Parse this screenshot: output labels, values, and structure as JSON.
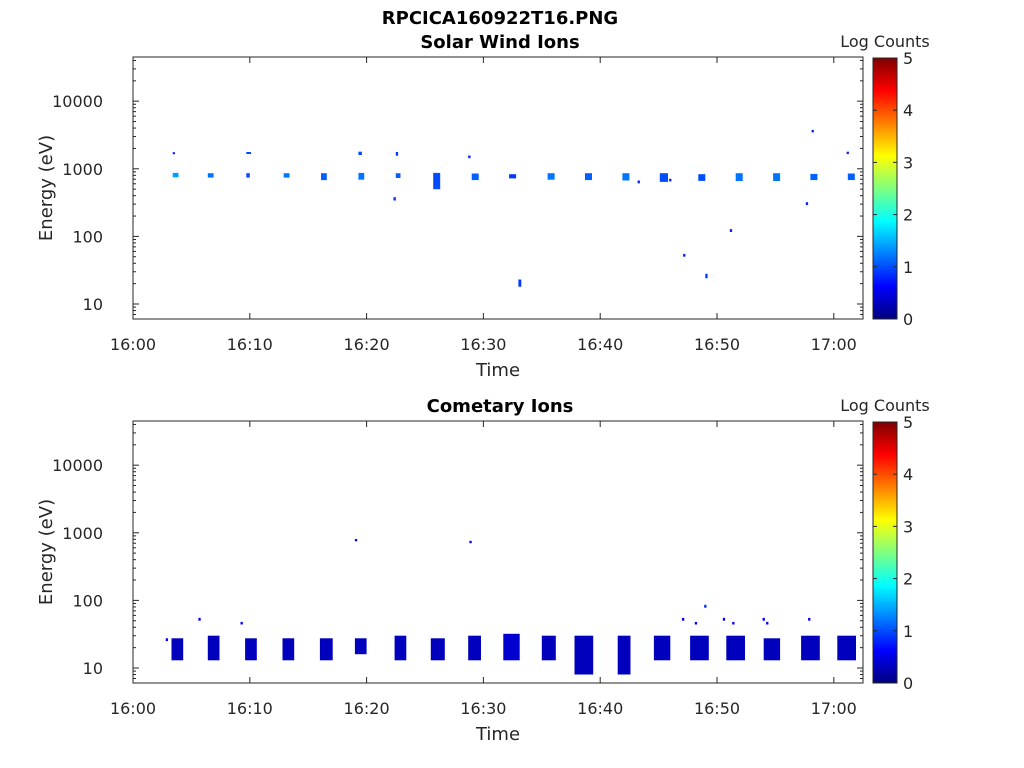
{
  "figure_title": "RPCICA160922T16.PNG",
  "colorbar": {
    "label": "Log Counts",
    "ticks": [
      "0",
      "1",
      "2",
      "3",
      "4",
      "5"
    ],
    "range": [
      0,
      5
    ],
    "colormap": "jet"
  },
  "chart_data": [
    {
      "type": "heatmap",
      "title": "Solar Wind Ions",
      "xlabel": "Time",
      "ylabel": "Energy (eV)",
      "xlim": [
        "16:00",
        "17:02.5"
      ],
      "ylim": [
        6,
        45000
      ],
      "yscale": "log",
      "x_ticks": [
        "16:00",
        "16:10",
        "16:20",
        "16:30",
        "16:40",
        "16:50",
        "17:00"
      ],
      "y_ticks": [
        "10",
        "100",
        "1000",
        "10000"
      ],
      "cells": [
        {
          "t": 3.4,
          "dt": 0.5,
          "e": 800,
          "lo": 750,
          "hi": 870,
          "v": 1.4
        },
        {
          "t": 3.4,
          "dt": 0.2,
          "e": 1700,
          "lo": 1650,
          "hi": 1760,
          "v": 0.8
        },
        {
          "t": 6.4,
          "dt": 0.5,
          "e": 790,
          "lo": 740,
          "hi": 860,
          "v": 1.2
        },
        {
          "t": 9.7,
          "dt": 0.3,
          "e": 800,
          "lo": 740,
          "hi": 860,
          "v": 1.0
        },
        {
          "t": 9.7,
          "dt": 0.4,
          "e": 1720,
          "lo": 1680,
          "hi": 1770,
          "v": 1.0
        },
        {
          "t": 12.9,
          "dt": 0.5,
          "e": 790,
          "lo": 740,
          "hi": 860,
          "v": 1.2
        },
        {
          "t": 16.1,
          "dt": 0.5,
          "e": 760,
          "lo": 680,
          "hi": 860,
          "v": 1.1
        },
        {
          "t": 19.3,
          "dt": 0.5,
          "e": 780,
          "lo": 690,
          "hi": 870,
          "v": 1.2
        },
        {
          "t": 19.3,
          "dt": 0.3,
          "e": 1720,
          "lo": 1600,
          "hi": 1790,
          "v": 1.0
        },
        {
          "t": 22.5,
          "dt": 0.4,
          "e": 790,
          "lo": 730,
          "hi": 860,
          "v": 1.1
        },
        {
          "t": 22.5,
          "dt": 0.2,
          "e": 1680,
          "lo": 1560,
          "hi": 1770,
          "v": 0.9
        },
        {
          "t": 22.3,
          "dt": 0.2,
          "e": 360,
          "lo": 340,
          "hi": 380,
          "v": 0.8
        },
        {
          "t": 25.7,
          "dt": 0.6,
          "e": 700,
          "lo": 500,
          "hi": 870,
          "v": 1.0
        },
        {
          "t": 28.7,
          "dt": 0.2,
          "e": 1500,
          "lo": 1430,
          "hi": 1570,
          "v": 0.8
        },
        {
          "t": 29.0,
          "dt": 0.6,
          "e": 760,
          "lo": 680,
          "hi": 850,
          "v": 1.1
        },
        {
          "t": 32.2,
          "dt": 0.6,
          "e": 770,
          "lo": 720,
          "hi": 830,
          "v": 0.9
        },
        {
          "t": 33.0,
          "dt": 0.25,
          "e": 20,
          "lo": 18,
          "hi": 23,
          "v": 0.9
        },
        {
          "t": 35.5,
          "dt": 0.6,
          "e": 770,
          "lo": 690,
          "hi": 860,
          "v": 1.2
        },
        {
          "t": 38.7,
          "dt": 0.6,
          "e": 770,
          "lo": 680,
          "hi": 860,
          "v": 1.1
        },
        {
          "t": 41.9,
          "dt": 0.6,
          "e": 770,
          "lo": 670,
          "hi": 860,
          "v": 1.2
        },
        {
          "t": 43.2,
          "dt": 0.2,
          "e": 640,
          "lo": 610,
          "hi": 670,
          "v": 0.8
        },
        {
          "t": 45.1,
          "dt": 0.7,
          "e": 740,
          "lo": 640,
          "hi": 860,
          "v": 1.0
        },
        {
          "t": 45.9,
          "dt": 0.2,
          "e": 680,
          "lo": 650,
          "hi": 710,
          "v": 0.8
        },
        {
          "t": 47.1,
          "dt": 0.2,
          "e": 52,
          "lo": 50,
          "hi": 55,
          "v": 0.8
        },
        {
          "t": 48.4,
          "dt": 0.6,
          "e": 730,
          "lo": 660,
          "hi": 830,
          "v": 1.0
        },
        {
          "t": 49.0,
          "dt": 0.2,
          "e": 26,
          "lo": 24,
          "hi": 28,
          "v": 0.9
        },
        {
          "t": 51.1,
          "dt": 0.2,
          "e": 122,
          "lo": 116,
          "hi": 128,
          "v": 0.8
        },
        {
          "t": 51.6,
          "dt": 0.6,
          "e": 760,
          "lo": 660,
          "hi": 860,
          "v": 1.2
        },
        {
          "t": 54.8,
          "dt": 0.6,
          "e": 760,
          "lo": 660,
          "hi": 860,
          "v": 1.2
        },
        {
          "t": 57.6,
          "dt": 0.2,
          "e": 305,
          "lo": 290,
          "hi": 320,
          "v": 0.8
        },
        {
          "t": 58.0,
          "dt": 0.6,
          "e": 760,
          "lo": 680,
          "hi": 840,
          "v": 1.1
        },
        {
          "t": 58.1,
          "dt": 0.2,
          "e": 3600,
          "lo": 3450,
          "hi": 3760,
          "v": 0.8
        },
        {
          "t": 61.1,
          "dt": 0.2,
          "e": 1720,
          "lo": 1650,
          "hi": 1790,
          "v": 0.8
        },
        {
          "t": 61.2,
          "dt": 0.6,
          "e": 770,
          "lo": 680,
          "hi": 850,
          "v": 1.1
        }
      ]
    },
    {
      "type": "heatmap",
      "title": "Cometary Ions",
      "xlabel": "Time",
      "ylabel": "Energy (eV)",
      "xlim": [
        "16:00",
        "17:02.5"
      ],
      "ylim": [
        6,
        45000
      ],
      "yscale": "log",
      "x_ticks": [
        "16:00",
        "16:10",
        "16:20",
        "16:30",
        "16:40",
        "16:50",
        "17:00"
      ],
      "y_ticks": [
        "10",
        "100",
        "1000",
        "10000"
      ],
      "cells": [
        {
          "t": 2.8,
          "dt": 0.2,
          "e": 26,
          "lo": 25,
          "hi": 27.5,
          "v": 0.6
        },
        {
          "t": 3.3,
          "dt": 1.0,
          "e": 21,
          "lo": 13,
          "hi": 27.5,
          "v": 0.3
        },
        {
          "t": 5.6,
          "dt": 0.2,
          "e": 52,
          "lo": 50,
          "hi": 55,
          "v": 0.6
        },
        {
          "t": 6.4,
          "dt": 1.0,
          "e": 20,
          "lo": 13,
          "hi": 30,
          "v": 0.3
        },
        {
          "t": 9.2,
          "dt": 0.2,
          "e": 46,
          "lo": 44,
          "hi": 48,
          "v": 0.6
        },
        {
          "t": 9.6,
          "dt": 1.0,
          "e": 20,
          "lo": 13,
          "hi": 27.5,
          "v": 0.3
        },
        {
          "t": 12.8,
          "dt": 1.0,
          "e": 20,
          "lo": 13,
          "hi": 27.5,
          "v": 0.3
        },
        {
          "t": 16.0,
          "dt": 1.1,
          "e": 20,
          "lo": 13,
          "hi": 27.5,
          "v": 0.3
        },
        {
          "t": 19.0,
          "dt": 0.2,
          "e": 780,
          "lo": 750,
          "hi": 810,
          "v": 0.6
        },
        {
          "t": 19.0,
          "dt": 1.0,
          "e": 22,
          "lo": 16,
          "hi": 27.5,
          "v": 0.3
        },
        {
          "t": 22.4,
          "dt": 1.0,
          "e": 20,
          "lo": 13,
          "hi": 30,
          "v": 0.3
        },
        {
          "t": 25.5,
          "dt": 1.2,
          "e": 20,
          "lo": 13,
          "hi": 27.5,
          "v": 0.3
        },
        {
          "t": 28.8,
          "dt": 0.2,
          "e": 730,
          "lo": 700,
          "hi": 760,
          "v": 0.6
        },
        {
          "t": 28.7,
          "dt": 1.1,
          "e": 21,
          "lo": 13,
          "hi": 30,
          "v": 0.3
        },
        {
          "t": 31.7,
          "dt": 1.4,
          "e": 20,
          "lo": 13,
          "hi": 32,
          "v": 0.4
        },
        {
          "t": 35.0,
          "dt": 1.2,
          "e": 20,
          "lo": 13,
          "hi": 30,
          "v": 0.3
        },
        {
          "t": 37.8,
          "dt": 1.6,
          "e": 18,
          "lo": 8,
          "hi": 30,
          "v": 0.3
        },
        {
          "t": 41.5,
          "dt": 1.1,
          "e": 18,
          "lo": 8,
          "hi": 30,
          "v": 0.3
        },
        {
          "t": 44.6,
          "dt": 1.4,
          "e": 20,
          "lo": 13,
          "hi": 30,
          "v": 0.3
        },
        {
          "t": 47.0,
          "dt": 0.2,
          "e": 52,
          "lo": 50,
          "hi": 55,
          "v": 0.6
        },
        {
          "t": 48.1,
          "dt": 0.2,
          "e": 46,
          "lo": 44,
          "hi": 48,
          "v": 0.6
        },
        {
          "t": 48.9,
          "dt": 0.2,
          "e": 82,
          "lo": 78,
          "hi": 86,
          "v": 0.8
        },
        {
          "t": 47.7,
          "dt": 1.6,
          "e": 20,
          "lo": 13,
          "hi": 30,
          "v": 0.3
        },
        {
          "t": 50.5,
          "dt": 0.2,
          "e": 52,
          "lo": 50,
          "hi": 55,
          "v": 0.6
        },
        {
          "t": 51.3,
          "dt": 0.2,
          "e": 46,
          "lo": 44,
          "hi": 48,
          "v": 0.6
        },
        {
          "t": 50.8,
          "dt": 1.6,
          "e": 20,
          "lo": 13,
          "hi": 30,
          "v": 0.3
        },
        {
          "t": 53.9,
          "dt": 0.2,
          "e": 52,
          "lo": 50,
          "hi": 55,
          "v": 0.6
        },
        {
          "t": 54.2,
          "dt": 0.2,
          "e": 46,
          "lo": 44,
          "hi": 48,
          "v": 0.6
        },
        {
          "t": 54.0,
          "dt": 1.4,
          "e": 20,
          "lo": 13,
          "hi": 27.5,
          "v": 0.3
        },
        {
          "t": 57.8,
          "dt": 0.2,
          "e": 52,
          "lo": 50,
          "hi": 55,
          "v": 0.6
        },
        {
          "t": 57.2,
          "dt": 1.6,
          "e": 20,
          "lo": 13,
          "hi": 30,
          "v": 0.3
        },
        {
          "t": 60.3,
          "dt": 1.6,
          "e": 20,
          "lo": 13,
          "hi": 30,
          "v": 0.3
        }
      ]
    }
  ]
}
